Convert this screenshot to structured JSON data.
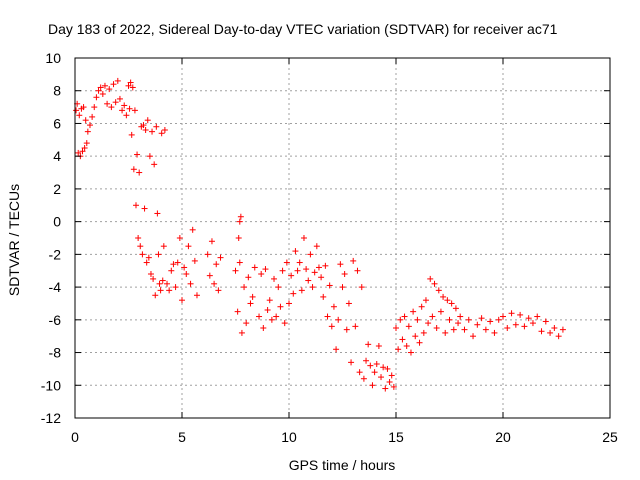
{
  "chart_data": {
    "type": "scatter",
    "title": "Day 183 of 2022, Sidereal Day-to-day VTEC variation (SDTVAR) for receiver ac71",
    "xlabel": "GPS time / hours",
    "ylabel": "SDTVAR / TECUs",
    "xlim": [
      0,
      25
    ],
    "ylim": [
      -12,
      10
    ],
    "xticks": [
      0,
      5,
      10,
      15,
      20,
      25
    ],
    "yticks": [
      -12,
      -10,
      -8,
      -6,
      -4,
      -2,
      0,
      2,
      4,
      6,
      8,
      10
    ],
    "grid": true,
    "marker": "plus",
    "marker_color": "#ff0000",
    "series": [
      {
        "name": "SDTVAR",
        "points": [
          [
            0.05,
            6.8
          ],
          [
            0.1,
            7.2
          ],
          [
            0.15,
            4.2
          ],
          [
            0.2,
            6.5
          ],
          [
            0.25,
            4.0
          ],
          [
            0.3,
            6.9
          ],
          [
            0.35,
            4.3
          ],
          [
            0.4,
            7.0
          ],
          [
            0.45,
            4.5
          ],
          [
            0.5,
            6.2
          ],
          [
            0.55,
            4.8
          ],
          [
            0.6,
            5.5
          ],
          [
            0.7,
            5.9
          ],
          [
            0.8,
            6.4
          ],
          [
            0.9,
            7.0
          ],
          [
            1.0,
            7.6
          ],
          [
            1.1,
            8.0
          ],
          [
            1.2,
            8.2
          ],
          [
            1.3,
            7.8
          ],
          [
            1.4,
            8.3
          ],
          [
            1.5,
            7.2
          ],
          [
            1.6,
            8.1
          ],
          [
            1.7,
            7.0
          ],
          [
            1.8,
            8.4
          ],
          [
            1.9,
            7.3
          ],
          [
            2.0,
            8.6
          ],
          [
            2.1,
            7.5
          ],
          [
            2.2,
            6.8
          ],
          [
            2.3,
            7.1
          ],
          [
            2.4,
            6.5
          ],
          [
            2.5,
            8.3
          ],
          [
            2.55,
            6.9
          ],
          [
            2.6,
            8.5
          ],
          [
            2.65,
            5.3
          ],
          [
            2.7,
            8.2
          ],
          [
            2.75,
            3.2
          ],
          [
            2.8,
            6.8
          ],
          [
            2.85,
            1.0
          ],
          [
            2.9,
            4.1
          ],
          [
            2.95,
            -1.0
          ],
          [
            3.0,
            3.0
          ],
          [
            3.05,
            -1.5
          ],
          [
            3.1,
            5.8
          ],
          [
            3.15,
            -2.0
          ],
          [
            3.2,
            5.9
          ],
          [
            3.25,
            0.8
          ],
          [
            3.3,
            5.6
          ],
          [
            3.35,
            -2.5
          ],
          [
            3.4,
            6.2
          ],
          [
            3.45,
            -2.2
          ],
          [
            3.5,
            4.0
          ],
          [
            3.55,
            -3.2
          ],
          [
            3.6,
            5.5
          ],
          [
            3.65,
            -3.5
          ],
          [
            3.7,
            3.5
          ],
          [
            3.75,
            -4.5
          ],
          [
            3.8,
            5.8
          ],
          [
            3.85,
            0.5
          ],
          [
            3.9,
            -2.0
          ],
          [
            3.95,
            -3.8
          ],
          [
            4.0,
            -4.2
          ],
          [
            4.05,
            5.4
          ],
          [
            4.1,
            -3.6
          ],
          [
            4.15,
            -1.5
          ],
          [
            4.2,
            5.6
          ],
          [
            4.3,
            -3.8
          ],
          [
            4.4,
            -4.2
          ],
          [
            4.5,
            -3.0
          ],
          [
            4.6,
            -2.6
          ],
          [
            4.7,
            -4.0
          ],
          [
            4.8,
            -2.5
          ],
          [
            4.9,
            -1.0
          ],
          [
            5.0,
            -4.8
          ],
          [
            5.1,
            -2.8
          ],
          [
            5.2,
            -3.2
          ],
          [
            5.3,
            -1.5
          ],
          [
            5.4,
            -3.8
          ],
          [
            5.5,
            -0.5
          ],
          [
            5.6,
            -2.4
          ],
          [
            5.7,
            -4.5
          ],
          [
            6.2,
            -2.0
          ],
          [
            6.3,
            -3.3
          ],
          [
            6.4,
            -1.2
          ],
          [
            6.5,
            -3.8
          ],
          [
            6.6,
            -2.6
          ],
          [
            6.7,
            -4.2
          ],
          [
            6.8,
            -2.2
          ],
          [
            7.5,
            -3.0
          ],
          [
            7.6,
            -5.5
          ],
          [
            7.7,
            -2.5
          ],
          [
            7.8,
            -6.8
          ],
          [
            7.9,
            -4.0
          ],
          [
            8.0,
            -6.2
          ],
          [
            8.1,
            -3.4
          ],
          [
            8.2,
            -5.0
          ],
          [
            8.3,
            -4.6
          ],
          [
            8.4,
            -2.8
          ],
          [
            7.7,
            0.0
          ],
          [
            7.75,
            0.3
          ],
          [
            7.65,
            -1.0
          ],
          [
            8.6,
            -5.8
          ],
          [
            8.7,
            -3.2
          ],
          [
            8.8,
            -6.5
          ],
          [
            8.9,
            -2.9
          ],
          [
            9.0,
            -5.4
          ],
          [
            9.1,
            -4.8
          ],
          [
            9.2,
            -6.0
          ],
          [
            9.3,
            -3.5
          ],
          [
            9.4,
            -5.8
          ],
          [
            9.5,
            -4.0
          ],
          [
            9.6,
            -5.2
          ],
          [
            9.7,
            -3.0
          ],
          [
            9.8,
            -6.2
          ],
          [
            9.9,
            -2.5
          ],
          [
            10.0,
            -5.0
          ],
          [
            10.1,
            -3.3
          ],
          [
            10.2,
            -4.4
          ],
          [
            10.3,
            -1.8
          ],
          [
            10.4,
            -3.0
          ],
          [
            10.5,
            -2.5
          ],
          [
            10.6,
            -4.2
          ],
          [
            10.7,
            -1.0
          ],
          [
            10.8,
            -2.9
          ],
          [
            10.9,
            -3.6
          ],
          [
            11.0,
            -2.0
          ],
          [
            11.1,
            -4.0
          ],
          [
            11.2,
            -3.1
          ],
          [
            11.3,
            -1.5
          ],
          [
            11.4,
            -2.8
          ],
          [
            11.5,
            -3.4
          ],
          [
            11.6,
            -4.6
          ],
          [
            11.7,
            -2.7
          ],
          [
            11.8,
            -5.8
          ],
          [
            11.9,
            -3.9
          ],
          [
            12.0,
            -6.4
          ],
          [
            12.1,
            -5.2
          ],
          [
            12.2,
            -7.8
          ],
          [
            12.3,
            -6.0
          ],
          [
            12.4,
            -2.6
          ],
          [
            12.5,
            -4.0
          ],
          [
            12.6,
            -3.2
          ],
          [
            12.7,
            -6.6
          ],
          [
            12.8,
            -5.0
          ],
          [
            12.9,
            -8.6
          ],
          [
            13.0,
            -2.4
          ],
          [
            13.1,
            -6.4
          ],
          [
            13.2,
            -3.0
          ],
          [
            13.3,
            -9.2
          ],
          [
            13.4,
            -4.0
          ],
          [
            13.5,
            -9.6
          ],
          [
            13.6,
            -8.5
          ],
          [
            13.7,
            -7.5
          ],
          [
            13.8,
            -8.8
          ],
          [
            13.9,
            -10.0
          ],
          [
            14.0,
            -9.2
          ],
          [
            14.1,
            -8.7
          ],
          [
            14.2,
            -7.6
          ],
          [
            14.3,
            -9.5
          ],
          [
            14.4,
            -8.9
          ],
          [
            14.5,
            -10.2
          ],
          [
            14.6,
            -9.0
          ],
          [
            14.7,
            -9.8
          ],
          [
            14.8,
            -9.4
          ],
          [
            14.9,
            -10.1
          ],
          [
            15.0,
            -6.5
          ],
          [
            15.1,
            -7.8
          ],
          [
            15.2,
            -6.0
          ],
          [
            15.3,
            -7.2
          ],
          [
            15.4,
            -5.8
          ],
          [
            15.5,
            -7.6
          ],
          [
            15.6,
            -6.4
          ],
          [
            15.7,
            -8.0
          ],
          [
            15.8,
            -5.5
          ],
          [
            15.9,
            -7.0
          ],
          [
            16.0,
            -6.0
          ],
          [
            16.1,
            -7.4
          ],
          [
            16.2,
            -5.2
          ],
          [
            16.3,
            -6.8
          ],
          [
            16.4,
            -4.8
          ],
          [
            16.5,
            -6.2
          ],
          [
            16.6,
            -3.5
          ],
          [
            16.7,
            -5.8
          ],
          [
            16.8,
            -3.8
          ],
          [
            16.9,
            -6.5
          ],
          [
            17.0,
            -4.2
          ],
          [
            17.1,
            -5.5
          ],
          [
            17.2,
            -4.6
          ],
          [
            17.3,
            -6.8
          ],
          [
            17.4,
            -4.8
          ],
          [
            17.5,
            -6.0
          ],
          [
            17.6,
            -5.0
          ],
          [
            17.7,
            -6.6
          ],
          [
            17.8,
            -5.3
          ],
          [
            17.9,
            -6.2
          ],
          [
            18.0,
            -5.8
          ],
          [
            18.2,
            -6.6
          ],
          [
            18.4,
            -6.0
          ],
          [
            18.6,
            -7.0
          ],
          [
            18.8,
            -6.3
          ],
          [
            19.0,
            -5.9
          ],
          [
            19.2,
            -6.6
          ],
          [
            19.4,
            -6.1
          ],
          [
            19.6,
            -6.8
          ],
          [
            19.8,
            -6.0
          ],
          [
            20.0,
            -5.8
          ],
          [
            20.2,
            -6.5
          ],
          [
            20.4,
            -5.6
          ],
          [
            20.6,
            -6.3
          ],
          [
            20.8,
            -5.7
          ],
          [
            21.0,
            -6.4
          ],
          [
            21.2,
            -5.9
          ],
          [
            21.4,
            -6.2
          ],
          [
            21.6,
            -5.8
          ],
          [
            21.8,
            -6.7
          ],
          [
            22.0,
            -6.1
          ],
          [
            22.2,
            -6.8
          ],
          [
            22.4,
            -6.5
          ],
          [
            22.6,
            -7.0
          ],
          [
            22.8,
            -6.6
          ]
        ]
      }
    ]
  }
}
